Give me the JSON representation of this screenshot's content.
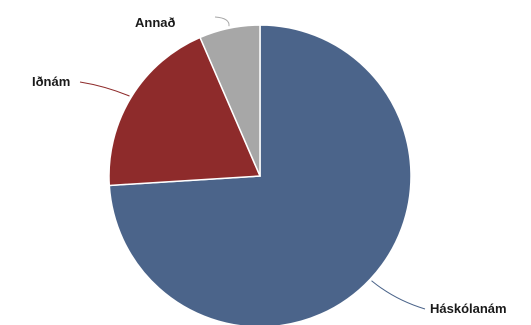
{
  "chart_data": {
    "type": "pie",
    "title": "",
    "start_angle_deg": 0,
    "direction": "clockwise",
    "slices": [
      {
        "label": "Háskólanám",
        "value": 74,
        "color": "#4b648a"
      },
      {
        "label": "Iðnám",
        "value": 19.5,
        "color": "#8e2b2b"
      },
      {
        "label": "Annað",
        "value": 6.5,
        "color": "#a7a7a7"
      }
    ],
    "legend": "none"
  }
}
